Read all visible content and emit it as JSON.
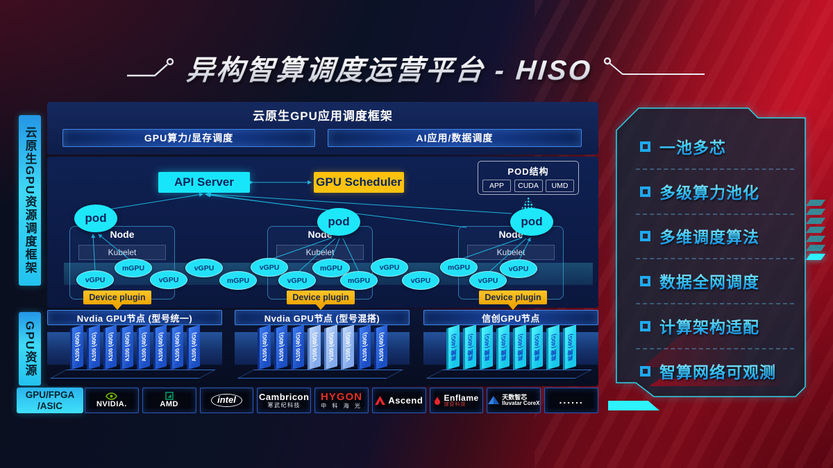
{
  "title": {
    "text": "异构智算调度运营平台 - HISO"
  },
  "sidebar": {
    "framework_label": "云原生GPU资源调度框架",
    "gpu_resource_label": "GPU资源",
    "hardware_line1": "GPU/FPGA",
    "hardware_line2": "/ASIC"
  },
  "framework_panel": {
    "title": "云原生GPU应用调度框架",
    "bars": [
      "GPU算力/显存调度",
      "AI应用/数据调度"
    ]
  },
  "scheduler": {
    "api_server": "API Server",
    "gpu_scheduler": "GPU Scheduler",
    "pod_structure": {
      "title": "POD结构",
      "items": [
        "APP",
        "CUDA",
        "UMD"
      ]
    },
    "pod_label": "pod",
    "node_label": "Node",
    "kubelet_label": "Kubelet",
    "device_plugin_label": "Device plugin",
    "gpu_ellipses": [
      "vGPU",
      "mGPU",
      "vGPU",
      "vGPU",
      "mGPU",
      "vGPU",
      "vGPU",
      "mGPU",
      "mGPU",
      "vGPU",
      "vGPU",
      "mGPU",
      "vGPU",
      "vGPU"
    ]
  },
  "gpu_groups": [
    {
      "header": "Nvdia GPU节点 (型号统一)",
      "cards": [
        {
          "label": "A100 (40G)",
          "type": "a100"
        },
        {
          "label": "A100 (40G)",
          "type": "a100"
        },
        {
          "label": "A100 (40G)",
          "type": "a100"
        },
        {
          "label": "A100 (40G)",
          "type": "a100"
        },
        {
          "label": "A100 (40G)",
          "type": "a100"
        },
        {
          "label": "A100 (40G)",
          "type": "a100"
        },
        {
          "label": "A100 (40G)",
          "type": "a100"
        },
        {
          "label": "A100 (40G)",
          "type": "a100"
        }
      ]
    },
    {
      "header": "Nvdia GPU节点 (型号混搭)",
      "cards": [
        {
          "label": "A100 (40G)",
          "type": "a100"
        },
        {
          "label": "A100 (40G)",
          "type": "a100"
        },
        {
          "label": "A100 (40G)",
          "type": "a100"
        },
        {
          "label": "V100 (40G)",
          "type": "v100"
        },
        {
          "label": "V100 (40G)",
          "type": "v100"
        },
        {
          "label": "V100 (40G)",
          "type": "v100"
        },
        {
          "label": "A100 (40G)",
          "type": "a100"
        },
        {
          "label": "A100 (40G)",
          "type": "a100"
        }
      ]
    },
    {
      "header": "信创GPU节点",
      "cards": [
        {
          "label": "昇腾 (40G)",
          "type": "ascend"
        },
        {
          "label": "昇腾 (40G)",
          "type": "ascend"
        },
        {
          "label": "昇腾 (40G)",
          "type": "ascend"
        },
        {
          "label": "昇腾 (40G)",
          "type": "ascend"
        },
        {
          "label": "昇腾 (40G)",
          "type": "ascend"
        },
        {
          "label": "昇腾 (40G)",
          "type": "ascend"
        },
        {
          "label": "昇腾 (40G)",
          "type": "ascend"
        },
        {
          "label": "昇腾 (40G)",
          "type": "ascend"
        }
      ]
    }
  ],
  "vendors": [
    {
      "id": "nvidia",
      "text": "NVIDIA."
    },
    {
      "id": "amd",
      "text": "AMD"
    },
    {
      "id": "intel",
      "text": "intel"
    },
    {
      "id": "cambricon",
      "text": "Cambricon",
      "subtext": "寒武纪科技"
    },
    {
      "id": "hygon",
      "text": "HYGON",
      "subtext": "中 科 海 光"
    },
    {
      "id": "ascend",
      "text": "Ascend"
    },
    {
      "id": "enflame",
      "text": "Enflame",
      "subtext": "燧原科技"
    },
    {
      "id": "iluvatar",
      "text": "天数智芯",
      "subtext": "Iluvatar CoreX"
    },
    {
      "id": "more",
      "text": "......"
    }
  ],
  "features": [
    "一池多芯",
    "多级算力池化",
    "多维调度算法",
    "数据全网调度",
    "计算架构适配",
    "智算网络可观测"
  ],
  "colors": {
    "cyan": "#23e2f8",
    "yellow": "#ffc20e",
    "card_blue": "#2563d8",
    "card_light": "#a9c9f6",
    "red_bg": "#c01226",
    "nvidia_green": "#76b900",
    "amd_green": "#009a66",
    "logo_red": "#e8252d"
  }
}
